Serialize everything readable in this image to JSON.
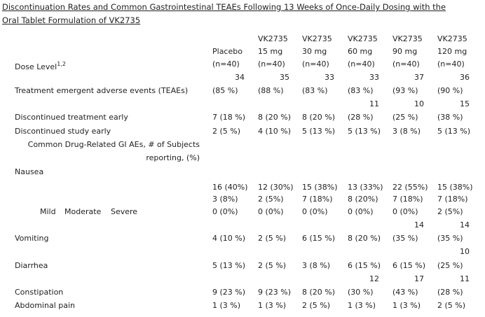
{
  "title": "Discontinuation Rates and Common Gastrointestinal TEAEs Following 13 Weeks of Once-Daily Dosing with the Oral Tablet Formulation of VK2735",
  "table": {
    "lines": [
      {
        "cells": [
          null,
          "VK2735",
          "VK2735",
          "VK2735",
          "VK2735",
          "VK2735"
        ]
      },
      {
        "cells": [
          "Placebo",
          "15 mg",
          "30 mg",
          "60 mg",
          "90 mg",
          "120 mg"
        ]
      },
      {
        "label": "Dose Level",
        "label_sup": "1,2",
        "cells": [
          "(n=40)",
          "(n=40)",
          "(n=40)",
          "(n=40)",
          "(n=40)",
          "(n=40)"
        ]
      },
      {
        "cells": [
          "34",
          "35",
          "33",
          "33",
          "37",
          "36"
        ]
      },
      {
        "label": "Treatment emergent adverse events (TEAEs)",
        "cells": [
          "(85 %)",
          "(88 %)",
          "(83 %)",
          "(83 %)",
          "(93 %)",
          "(90 %)"
        ]
      },
      {
        "cells": [
          null,
          null,
          null,
          "11",
          "10",
          "15"
        ]
      },
      {
        "label": "Discontinued treatment early",
        "cells": [
          "7 (18 %)",
          "8 (20 %)",
          "8 (20 %)",
          "(28 %)",
          "(25 %)",
          "(38 %)"
        ]
      },
      {
        "label": "Discontinued study early",
        "cells": [
          "2 (5 %)",
          "4 (10 %)",
          "5 (13 %)",
          "5 (13 %)",
          "3 (8 %)",
          "5 (13 %)"
        ]
      },
      {
        "label": "Common Drug-Related GI AEs, # of Subjects"
      },
      {
        "label": "reporting, (%)"
      },
      {
        "label": "Nausea"
      },
      {
        "cells": [
          "16 (40%)",
          "12 (30%)",
          "15 (38%)",
          "13 (33%)",
          "22 (55%)",
          "15 (38%)"
        ]
      },
      {
        "cells": [
          "3 (8%)",
          "2 (5%)",
          "7 (18%)",
          "8 (20%)",
          "7 (18%)",
          "7 (18%)"
        ]
      },
      {
        "labels": [
          "Mild",
          "Moderate",
          "Severe"
        ],
        "cells": [
          "0 (0%)",
          "0 (0%)",
          "0 (0%)",
          "0 (0%)",
          "0 (0%)",
          "2 (5%)"
        ]
      },
      {
        "cells": [
          null,
          null,
          null,
          null,
          "14",
          "14"
        ]
      },
      {
        "label": "Vomiting",
        "cells": [
          "4 (10 %)",
          "2 (5 %)",
          "6 (15 %)",
          "8 (20 %)",
          "(35 %)",
          "(35 %)"
        ]
      },
      {
        "cells": [
          null,
          null,
          null,
          null,
          null,
          "10"
        ]
      },
      {
        "label": "Diarrhea",
        "cells": [
          "5 (13 %)",
          "2 (5 %)",
          "3 (8 %)",
          "6 (15 %)",
          "6 (15 %)",
          "(25 %)"
        ]
      },
      {
        "cells": [
          null,
          null,
          null,
          "12",
          "17",
          "11"
        ]
      },
      {
        "label": "Constipation",
        "cells": [
          "9 (23 %)",
          "9 (23 %)",
          "8 (20 %)",
          "(30 %)",
          "(43 %)",
          "(28 %)"
        ]
      },
      {
        "label": "Abdominal pain",
        "cells": [
          "1 (3 %)",
          "1 (3 %)",
          "2 (5 %)",
          "1 (3 %)",
          "1 (3 %)",
          "2 (5 %)"
        ]
      }
    ]
  }
}
